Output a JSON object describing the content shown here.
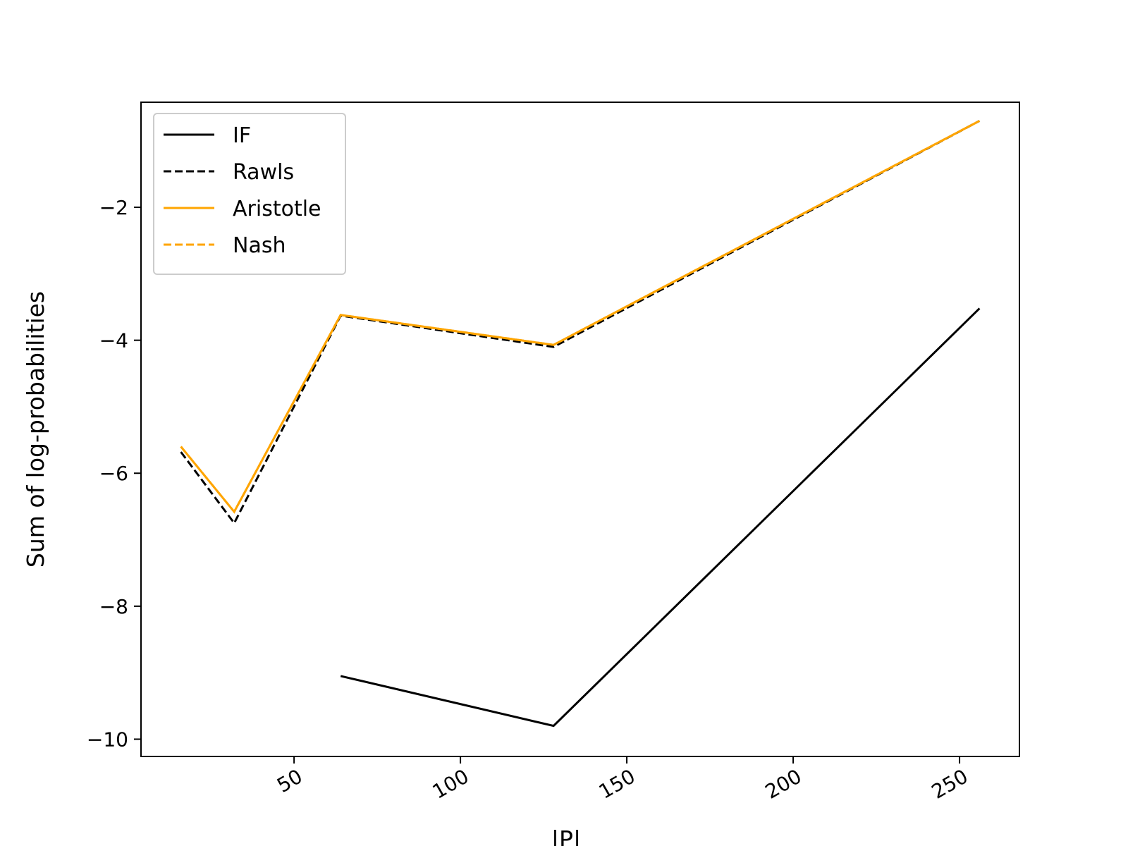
{
  "chart_data": {
    "type": "line",
    "title": "",
    "xlabel": "|P|",
    "ylabel": "Sum of log-probabilities",
    "xlim": [
      4,
      268
    ],
    "ylim": [
      -10.26,
      -0.42
    ],
    "xticks": [
      50,
      100,
      150,
      200,
      250
    ],
    "xtick_labels": [
      "50",
      "100",
      "150",
      "200",
      "250"
    ],
    "xtick_rotation": 30,
    "yticks": [
      -10,
      -8,
      -6,
      -4,
      -2
    ],
    "ytick_labels": [
      "−10",
      "−8",
      "−6",
      "−4",
      "−2"
    ],
    "grid": false,
    "legend_position": "upper-left",
    "series": [
      {
        "name": "IF",
        "color": "#000000",
        "dash": "solid",
        "x": [
          64,
          128,
          256
        ],
        "y": [
          -9.05,
          -9.8,
          -3.52
        ]
      },
      {
        "name": "Rawls",
        "color": "#000000",
        "dash": "dashed",
        "x": [
          16,
          32,
          64,
          128,
          256
        ],
        "y": [
          -5.68,
          -6.75,
          -3.63,
          -4.1,
          -0.7
        ]
      },
      {
        "name": "Aristotle",
        "color": "#ffa500",
        "dash": "solid",
        "x": [
          16,
          32,
          64,
          128,
          256
        ],
        "y": [
          -5.6,
          -6.58,
          -3.62,
          -4.07,
          -0.7
        ]
      },
      {
        "name": "Nash",
        "color": "#ffa500",
        "dash": "dashed",
        "x": [
          16,
          32,
          64,
          128,
          256
        ],
        "y": [
          -5.6,
          -6.58,
          -3.62,
          -4.07,
          -0.7
        ]
      }
    ]
  }
}
